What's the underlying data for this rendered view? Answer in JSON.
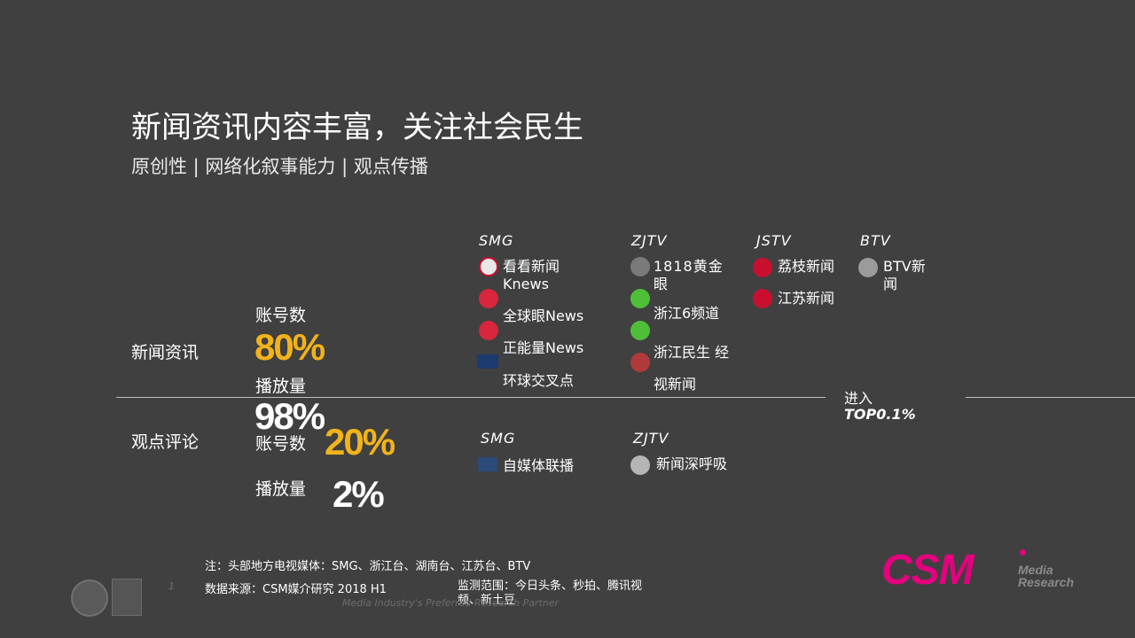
{
  "title": "新闻资讯内容丰富，关注社会民生",
  "subtitle": "原创性 | 网络化叙事能力 | 观点传播",
  "rows": {
    "news": {
      "label": "新闻资讯",
      "accounts_label": "账号数",
      "accounts_value": "80%",
      "plays_label": "播放量",
      "plays_value": "98%"
    },
    "opinion": {
      "label": "观点评论",
      "accounts_label": "账号数",
      "accounts_value": "20%",
      "plays_label": "播放量",
      "plays_value": "2%"
    }
  },
  "groups_news": [
    {
      "head": "SMG",
      "items": [
        "看看新闻Knews",
        "全球眼News",
        "正能量News",
        "环球交叉点"
      ]
    },
    {
      "head": "ZJTV",
      "items": [
        "1818黄金眼",
        "浙江6频道",
        "浙江民生 经视新闻"
      ]
    },
    {
      "head": "JSTV",
      "items": [
        "荔枝新闻",
        "江苏新闻"
      ]
    },
    {
      "head": "BTV",
      "items": [
        "BTV新闻"
      ]
    }
  ],
  "groups_opinion": [
    {
      "head": "SMG",
      "items": [
        "自媒体联播"
      ]
    },
    {
      "head": "ZJTV",
      "items": [
        "新闻深呼吸"
      ]
    }
  ],
  "top_note": {
    "line1": "进入",
    "line2": "TOP0.1%"
  },
  "footer": {
    "note": "注：头部地方电视媒体：SMG、浙江台、湖南台、江苏台、BTV",
    "source": "数据来源：CSM媒介研究  2018 H1",
    "scope": "监测范围：今日头条、秒拍、腾讯视频、新土豆",
    "slogan": "Media Industry's Preferred Research Partner",
    "page": "1"
  },
  "brand": {
    "name": "CSM",
    "sub1": "Media",
    "sub2": "Research"
  },
  "colors": {
    "background": "#404040",
    "highlight": "#F2B31B",
    "brand": "#E4007F"
  }
}
